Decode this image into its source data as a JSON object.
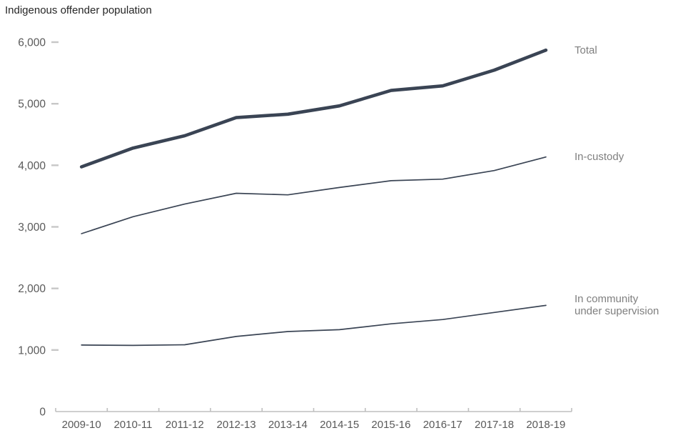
{
  "chart_data": {
    "type": "line",
    "title": "Indigenous offender population",
    "categories": [
      "2009-10",
      "2010-11",
      "2011-12",
      "2012-13",
      "2013-14",
      "2014-15",
      "2015-16",
      "2016-17",
      "2017-18",
      "2018-19"
    ],
    "series": [
      {
        "name": "Total",
        "emphasized": true,
        "legend_lines": [
          "Total"
        ],
        "values": [
          3975,
          4280,
          4480,
          4775,
          4830,
          4965,
          5215,
          5290,
          5545,
          5870
        ]
      },
      {
        "name": "In-custody",
        "emphasized": false,
        "legend_lines": [
          "In-custody"
        ],
        "values": [
          2890,
          3165,
          3370,
          3545,
          3520,
          3640,
          3750,
          3775,
          3915,
          4135
        ]
      },
      {
        "name": "In community under supervision",
        "emphasized": false,
        "legend_lines": [
          "In community",
          "under supervision"
        ],
        "values": [
          1080,
          1075,
          1085,
          1220,
          1300,
          1330,
          1425,
          1495,
          1610,
          1725
        ]
      }
    ],
    "xlabel": "",
    "ylabel": "",
    "ylim": [
      0,
      6000
    ],
    "ytick_step": 1000,
    "ytick_labels": [
      "0",
      "1,000",
      "2,000",
      "3,000",
      "4,000",
      "5,000",
      "6,000"
    ],
    "grid": false,
    "legend_position": "right of line ends",
    "colors": {
      "line": "#3a4454",
      "title_text": "#262626",
      "axis_text": "#595959",
      "legend_text": "#7f7f7f",
      "axis_line": "#bfbfbf",
      "tick_dash": "#c7c7c7"
    }
  }
}
